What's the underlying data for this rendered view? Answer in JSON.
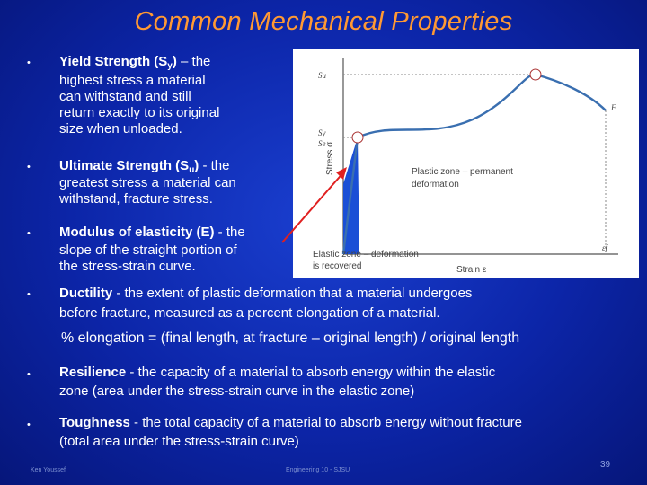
{
  "title": "Common Mechanical Properties",
  "bullets": [
    {
      "term": "Yield Strength (S",
      "sub": "y",
      "term_end": ")",
      "sep": " – the",
      "lines": [
        "highest stress a material",
        "can withstand and still",
        "return exactly to its original",
        "size when unloaded."
      ]
    },
    {
      "term": "Ultimate Strength (S",
      "sub": "u",
      "term_end": ")",
      "sep": " - the",
      "lines": [
        "greatest stress a material can",
        "withstand, fracture stress."
      ]
    },
    {
      "term": "Modulus of elasticity (E)",
      "sep": " - the",
      "lines": [
        "slope of the straight portion of",
        "the stress-strain curve."
      ]
    },
    {
      "term": "Ductility",
      "sep": " -  the extent of plastic deformation that a material undergoes",
      "lines": [
        "before fracture, measured as a percent elongation of a material."
      ]
    },
    {
      "formula": "% elongation = (final length, at fracture – original length) / original length"
    },
    {
      "term": "Resilience",
      "sep": " - the capacity of a material to absorb energy within the elastic",
      "lines": [
        "zone (area under the stress-strain curve in the elastic zone)"
      ]
    },
    {
      "term": "Toughness",
      "sep": " - the total capacity of a material to absorb energy without fracture",
      "lines": [
        "(total area under the stress-strain curve)"
      ]
    }
  ],
  "figure": {
    "y_axis_label": "Stress σ",
    "x_axis_label": "Strain ε",
    "label_su": "Su",
    "label_sy": "Sy",
    "label_se": "Se",
    "label_f": "F",
    "label_ef": "εf",
    "plastic_zone": [
      "Plastic zone – permanent",
      "deformation"
    ],
    "elastic_zone": [
      "Elastic zone – deformation",
      "is recovered"
    ],
    "elastic_fill": "#1a4fd6",
    "curve_color": "#3a6fb0"
  },
  "footer": {
    "left": "Ken Youssefi",
    "center": "Engineering 10 - SJSU",
    "page": "39"
  },
  "colors": {
    "title": "#ff9933",
    "background": "#0c25a8"
  }
}
